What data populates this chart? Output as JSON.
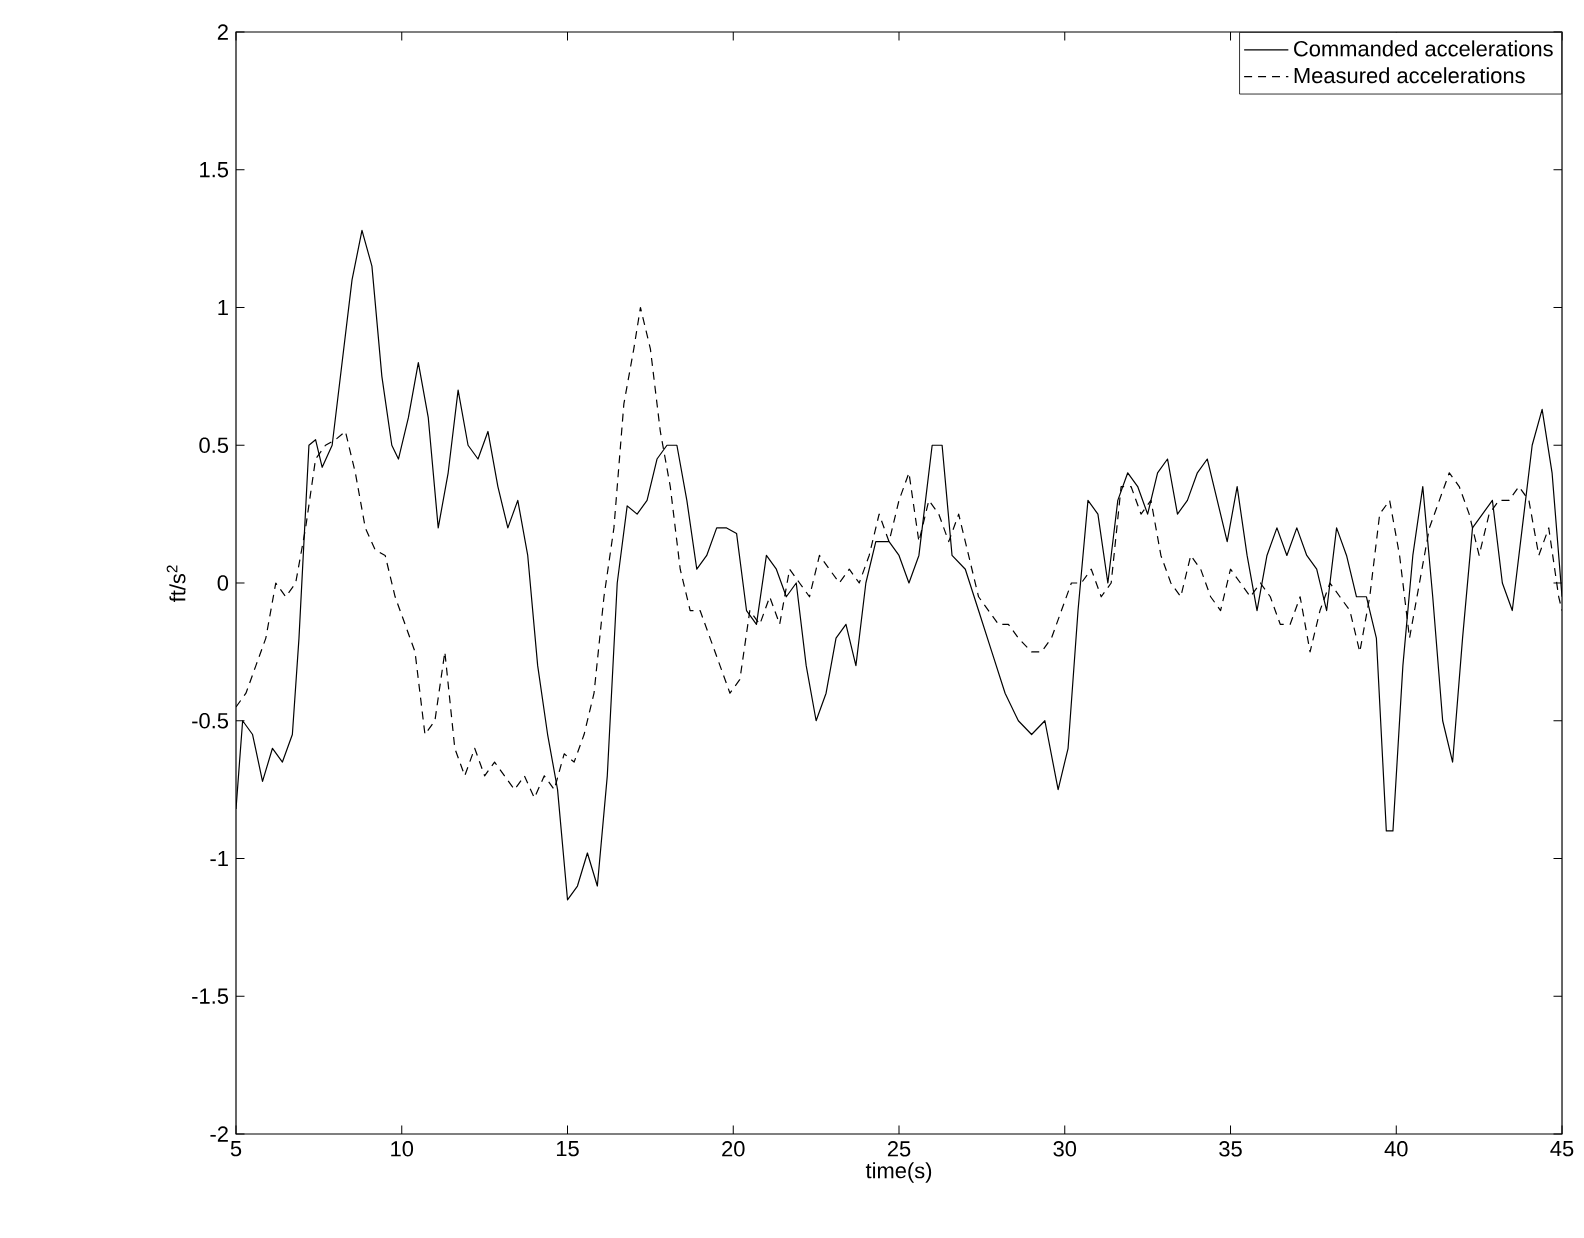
{
  "chart_data": {
    "type": "line",
    "xlabel": "time(s)",
    "ylabel": "ft/s$^{2}$",
    "xlim": [
      5,
      45
    ],
    "ylim": [
      -2,
      2
    ],
    "xticks": [
      5,
      10,
      15,
      20,
      25,
      30,
      35,
      40,
      45
    ],
    "yticks": [
      -2,
      -1.5,
      -1,
      -0.5,
      0,
      0.5,
      1,
      1.5,
      2
    ],
    "grid": false,
    "legend": "top right",
    "marker": "none",
    "series": [
      {
        "name": "Commanded accelerations",
        "color": "#000000",
        "line_style": "solid",
        "x": [
          5.0,
          5.2,
          5.5,
          5.8,
          6.1,
          6.4,
          6.7,
          6.9,
          7.2,
          7.4,
          7.6,
          7.9,
          8.2,
          8.5,
          8.8,
          9.1,
          9.4,
          9.7,
          9.9,
          10.2,
          10.5,
          10.8,
          11.1,
          11.4,
          11.7,
          12.0,
          12.3,
          12.6,
          12.9,
          13.2,
          13.5,
          13.8,
          14.1,
          14.4,
          14.7,
          15.0,
          15.3,
          15.6,
          15.9,
          16.2,
          16.5,
          16.8,
          17.1,
          17.4,
          17.7,
          18.0,
          18.3,
          18.6,
          18.9,
          19.2,
          19.5,
          19.8,
          20.1,
          20.4,
          20.7,
          21.0,
          21.3,
          21.6,
          21.9,
          22.2,
          22.5,
          22.8,
          23.1,
          23.4,
          23.7,
          24.0,
          24.3,
          24.7,
          25.0,
          25.3,
          25.6,
          26.0,
          26.3,
          26.6,
          27.0,
          27.4,
          27.8,
          28.2,
          28.6,
          29.0,
          29.4,
          29.8,
          30.1,
          30.4,
          30.7,
          31.0,
          31.3,
          31.6,
          31.9,
          32.2,
          32.5,
          32.8,
          33.1,
          33.4,
          33.7,
          34.0,
          34.3,
          34.6,
          34.9,
          35.2,
          35.5,
          35.8,
          36.1,
          36.4,
          36.7,
          37.0,
          37.3,
          37.6,
          37.9,
          38.2,
          38.5,
          38.8,
          39.1,
          39.4,
          39.7,
          39.9,
          40.2,
          40.5,
          40.8,
          41.1,
          41.4,
          41.7,
          42.0,
          42.3,
          42.6,
          42.9,
          43.2,
          43.5,
          43.8,
          44.1,
          44.4,
          44.7,
          45.0
        ],
        "values": [
          -0.82,
          -0.5,
          -0.55,
          -0.72,
          -0.6,
          -0.65,
          -0.55,
          -0.2,
          0.5,
          0.52,
          0.42,
          0.5,
          0.8,
          1.1,
          1.28,
          1.15,
          0.75,
          0.5,
          0.45,
          0.6,
          0.8,
          0.6,
          0.2,
          0.4,
          0.7,
          0.5,
          0.45,
          0.55,
          0.35,
          0.2,
          0.3,
          0.1,
          -0.3,
          -0.55,
          -0.75,
          -1.15,
          -1.1,
          -0.98,
          -1.1,
          -0.7,
          0.0,
          0.28,
          0.25,
          0.3,
          0.45,
          0.5,
          0.5,
          0.3,
          0.05,
          0.1,
          0.2,
          0.2,
          0.18,
          -0.1,
          -0.15,
          0.1,
          0.05,
          -0.05,
          0.0,
          -0.3,
          -0.5,
          -0.4,
          -0.2,
          -0.15,
          -0.3,
          0.0,
          0.15,
          0.15,
          0.1,
          0.0,
          0.1,
          0.5,
          0.5,
          0.1,
          0.05,
          -0.1,
          -0.25,
          -0.4,
          -0.5,
          -0.55,
          -0.5,
          -0.75,
          -0.6,
          -0.1,
          0.3,
          0.25,
          0.0,
          0.3,
          0.4,
          0.35,
          0.25,
          0.4,
          0.45,
          0.25,
          0.3,
          0.4,
          0.45,
          0.3,
          0.15,
          0.35,
          0.1,
          -0.1,
          0.1,
          0.2,
          0.1,
          0.2,
          0.1,
          0.05,
          -0.1,
          0.2,
          0.1,
          -0.05,
          -0.05,
          -0.2,
          -0.9,
          -0.9,
          -0.3,
          0.1,
          0.35,
          -0.05,
          -0.5,
          -0.65,
          -0.2,
          0.2,
          0.25,
          0.3,
          0.0,
          -0.1,
          0.2,
          0.5,
          0.63,
          0.4,
          -0.05
        ]
      },
      {
        "name": "Measured accelerations",
        "color": "#000000",
        "line_style": "dashed",
        "x": [
          5.0,
          5.3,
          5.6,
          5.9,
          6.2,
          6.5,
          6.8,
          7.1,
          7.4,
          7.7,
          8.0,
          8.3,
          8.6,
          8.9,
          9.2,
          9.5,
          9.8,
          10.1,
          10.4,
          10.7,
          11.0,
          11.3,
          11.6,
          11.9,
          12.2,
          12.5,
          12.8,
          13.1,
          13.4,
          13.7,
          14.0,
          14.3,
          14.6,
          14.9,
          15.2,
          15.5,
          15.8,
          16.1,
          16.4,
          16.7,
          17.0,
          17.2,
          17.5,
          17.8,
          18.1,
          18.4,
          18.7,
          19.0,
          19.3,
          19.6,
          19.9,
          20.2,
          20.5,
          20.8,
          21.1,
          21.4,
          21.7,
          22.0,
          22.3,
          22.6,
          22.9,
          23.2,
          23.5,
          23.8,
          24.1,
          24.4,
          24.7,
          25.0,
          25.3,
          25.6,
          25.9,
          26.2,
          26.5,
          26.8,
          27.1,
          27.4,
          27.7,
          28.0,
          28.3,
          28.6,
          29.0,
          29.3,
          29.6,
          29.9,
          30.2,
          30.5,
          30.8,
          31.1,
          31.4,
          31.7,
          32.0,
          32.3,
          32.6,
          32.9,
          33.2,
          33.5,
          33.8,
          34.1,
          34.4,
          34.7,
          35.0,
          35.3,
          35.6,
          35.9,
          36.2,
          36.5,
          36.8,
          37.1,
          37.4,
          37.7,
          38.0,
          38.3,
          38.6,
          38.9,
          39.2,
          39.5,
          39.8,
          40.1,
          40.4,
          40.7,
          41.0,
          41.3,
          41.6,
          41.9,
          42.2,
          42.5,
          42.8,
          43.1,
          43.4,
          43.7,
          44.0,
          44.3,
          44.6,
          44.9,
          45.0
        ],
        "values": [
          -0.45,
          -0.4,
          -0.3,
          -0.2,
          0.0,
          -0.05,
          0.0,
          0.2,
          0.45,
          0.5,
          0.52,
          0.55,
          0.4,
          0.2,
          0.12,
          0.1,
          -0.05,
          -0.15,
          -0.25,
          -0.55,
          -0.5,
          -0.25,
          -0.6,
          -0.7,
          -0.6,
          -0.7,
          -0.65,
          -0.7,
          -0.75,
          -0.7,
          -0.78,
          -0.7,
          -0.75,
          -0.62,
          -0.65,
          -0.55,
          -0.4,
          -0.05,
          0.2,
          0.65,
          0.85,
          1.0,
          0.85,
          0.55,
          0.35,
          0.05,
          -0.1,
          -0.1,
          -0.2,
          -0.3,
          -0.4,
          -0.35,
          -0.1,
          -0.15,
          -0.05,
          -0.15,
          0.05,
          0.0,
          -0.05,
          0.1,
          0.05,
          0.0,
          0.05,
          0.0,
          0.1,
          0.25,
          0.15,
          0.3,
          0.4,
          0.15,
          0.3,
          0.25,
          0.15,
          0.25,
          0.1,
          -0.05,
          -0.1,
          -0.15,
          -0.15,
          -0.2,
          -0.25,
          -0.25,
          -0.2,
          -0.1,
          0.0,
          0.0,
          0.05,
          -0.05,
          0.0,
          0.35,
          0.35,
          0.25,
          0.3,
          0.1,
          0.0,
          -0.05,
          0.1,
          0.05,
          -0.05,
          -0.1,
          0.05,
          0.0,
          -0.05,
          0.0,
          -0.05,
          -0.15,
          -0.15,
          -0.05,
          -0.25,
          -0.1,
          0.0,
          -0.05,
          -0.1,
          -0.25,
          -0.05,
          0.25,
          0.3,
          0.1,
          -0.2,
          0.0,
          0.2,
          0.3,
          0.4,
          0.35,
          0.25,
          0.1,
          0.25,
          0.3,
          0.3,
          0.35,
          0.3,
          0.1,
          0.2,
          -0.05,
          -0.1
        ]
      }
    ]
  }
}
